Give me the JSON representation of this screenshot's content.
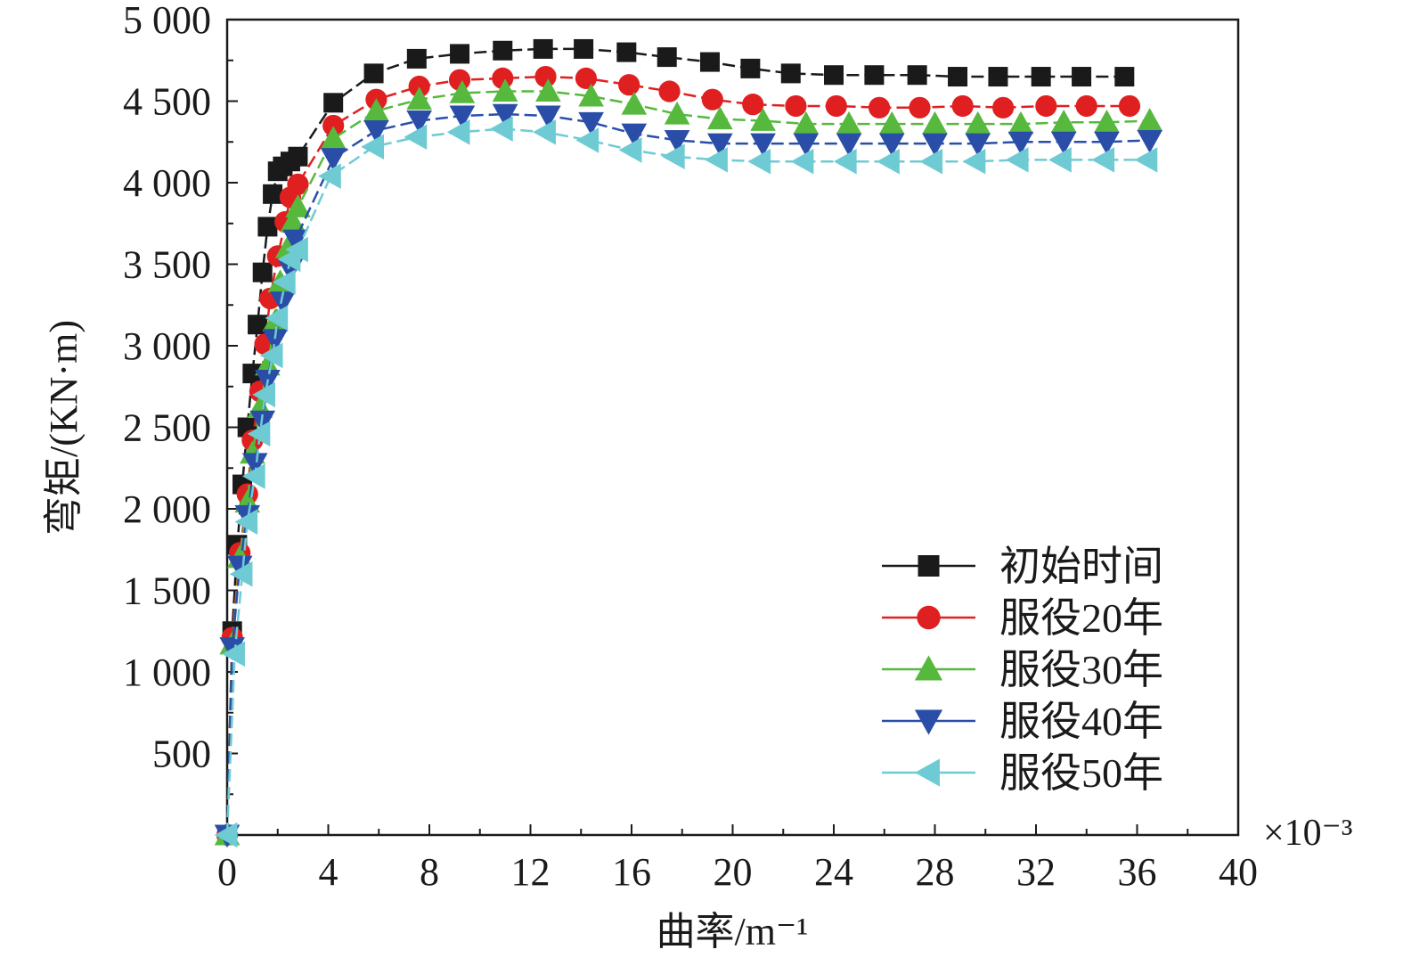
{
  "chart_data": {
    "type": "line",
    "title": "",
    "xlabel": "曲率/m⁻¹",
    "ylabel": "弯矩/(KN·m)",
    "x_multiplier": "×10⁻³",
    "xlim": [
      0,
      40
    ],
    "ylim": [
      0,
      5000
    ],
    "x_ticks": [
      0,
      4,
      8,
      12,
      16,
      20,
      24,
      28,
      32,
      36,
      40
    ],
    "x_tick_labels": [
      "0",
      "4",
      "8",
      "12",
      "16",
      "20",
      "24",
      "28",
      "32",
      "36",
      "40"
    ],
    "y_ticks": [
      500,
      1000,
      1500,
      2000,
      2500,
      3000,
      3500,
      4000,
      4500,
      5000
    ],
    "y_tick_labels": [
      "500",
      "1 000",
      "1 500",
      "2 000",
      "2 500",
      "3 000",
      "3 500",
      "4 000",
      "4 500",
      "5 000"
    ],
    "grid": false,
    "legend_position": "lower-right",
    "series": [
      {
        "name": "初始时间",
        "color": "#1a1a1a",
        "marker": "square",
        "x": [
          0.0,
          0.2,
          0.4,
          0.6,
          0.8,
          1.0,
          1.2,
          1.4,
          1.6,
          1.8,
          2.0,
          2.2,
          2.5,
          2.8,
          4.2,
          5.8,
          7.5,
          9.2,
          10.9,
          12.5,
          14.1,
          15.8,
          17.4,
          19.1,
          20.7,
          22.3,
          24.0,
          25.6,
          27.3,
          28.9,
          30.5,
          32.2,
          33.8,
          35.5
        ],
        "y": [
          0,
          1250,
          1780,
          2150,
          2500,
          2830,
          3130,
          3450,
          3730,
          3930,
          4070,
          4100,
          4130,
          4160,
          4490,
          4670,
          4760,
          4790,
          4810,
          4820,
          4820,
          4800,
          4770,
          4740,
          4700,
          4670,
          4660,
          4660,
          4660,
          4650,
          4650,
          4650,
          4650,
          4650
        ]
      },
      {
        "name": "服役20年",
        "color": "#e02020",
        "marker": "circle",
        "x": [
          0.0,
          0.2,
          0.5,
          0.8,
          1.0,
          1.3,
          1.5,
          1.7,
          2.0,
          2.3,
          2.5,
          2.8,
          4.2,
          5.9,
          7.6,
          9.2,
          10.9,
          12.6,
          14.2,
          15.9,
          17.5,
          19.2,
          20.8,
          22.5,
          24.1,
          25.8,
          27.4,
          29.1,
          30.7,
          32.4,
          34.0,
          35.7
        ],
        "y": [
          0,
          1210,
          1730,
          2090,
          2420,
          2720,
          3010,
          3290,
          3550,
          3760,
          3910,
          3990,
          4350,
          4510,
          4590,
          4630,
          4640,
          4650,
          4640,
          4600,
          4560,
          4510,
          4480,
          4470,
          4470,
          4460,
          4460,
          4470,
          4460,
          4470,
          4470,
          4470
        ]
      },
      {
        "name": "服役30年",
        "color": "#56b93d",
        "marker": "triangle-up",
        "x": [
          0.0,
          0.2,
          0.5,
          0.8,
          1.0,
          1.3,
          1.6,
          1.9,
          2.1,
          2.4,
          2.6,
          2.8,
          4.2,
          5.9,
          7.6,
          9.3,
          11.0,
          12.7,
          14.4,
          16.1,
          17.8,
          19.5,
          21.2,
          22.9,
          24.6,
          26.3,
          28.0,
          29.7,
          31.4,
          33.1,
          34.8,
          36.5
        ],
        "y": [
          0,
          1170,
          1700,
          2040,
          2340,
          2620,
          2880,
          3150,
          3390,
          3600,
          3760,
          3850,
          4270,
          4440,
          4510,
          4550,
          4560,
          4560,
          4530,
          4480,
          4420,
          4390,
          4380,
          4360,
          4360,
          4360,
          4360,
          4360,
          4360,
          4370,
          4370,
          4380
        ]
      },
      {
        "name": "服役40年",
        "color": "#2a4ea8",
        "marker": "triangle-down",
        "x": [
          0.0,
          0.2,
          0.5,
          0.8,
          1.1,
          1.4,
          1.6,
          1.9,
          2.2,
          2.5,
          2.7,
          4.2,
          5.9,
          7.6,
          9.3,
          11.0,
          12.7,
          14.4,
          16.1,
          17.8,
          19.5,
          21.2,
          22.9,
          24.6,
          26.3,
          28.0,
          29.7,
          31.4,
          33.1,
          34.8,
          36.5
        ],
        "y": [
          0,
          1150,
          1650,
          1960,
          2280,
          2540,
          2790,
          3040,
          3270,
          3470,
          3650,
          4150,
          4320,
          4380,
          4410,
          4420,
          4410,
          4370,
          4300,
          4260,
          4240,
          4240,
          4240,
          4240,
          4240,
          4240,
          4240,
          4250,
          4250,
          4250,
          4260
        ]
      },
      {
        "name": "服役50年",
        "color": "#6ecbd3",
        "marker": "triangle-left",
        "x": [
          0.0,
          0.3,
          0.6,
          0.8,
          1.1,
          1.3,
          1.5,
          1.8,
          2.0,
          2.3,
          2.5,
          2.8,
          4.1,
          5.8,
          7.5,
          9.2,
          10.9,
          12.6,
          14.3,
          16.0,
          17.7,
          19.4,
          21.1,
          22.8,
          24.5,
          26.2,
          27.9,
          29.6,
          31.3,
          33.0,
          34.7,
          36.4
        ],
        "y": [
          0,
          1110,
          1600,
          1920,
          2200,
          2460,
          2700,
          2940,
          3170,
          3390,
          3530,
          3590,
          4040,
          4220,
          4280,
          4310,
          4330,
          4310,
          4260,
          4200,
          4160,
          4140,
          4130,
          4130,
          4130,
          4130,
          4130,
          4130,
          4140,
          4140,
          4140,
          4140
        ]
      }
    ]
  }
}
